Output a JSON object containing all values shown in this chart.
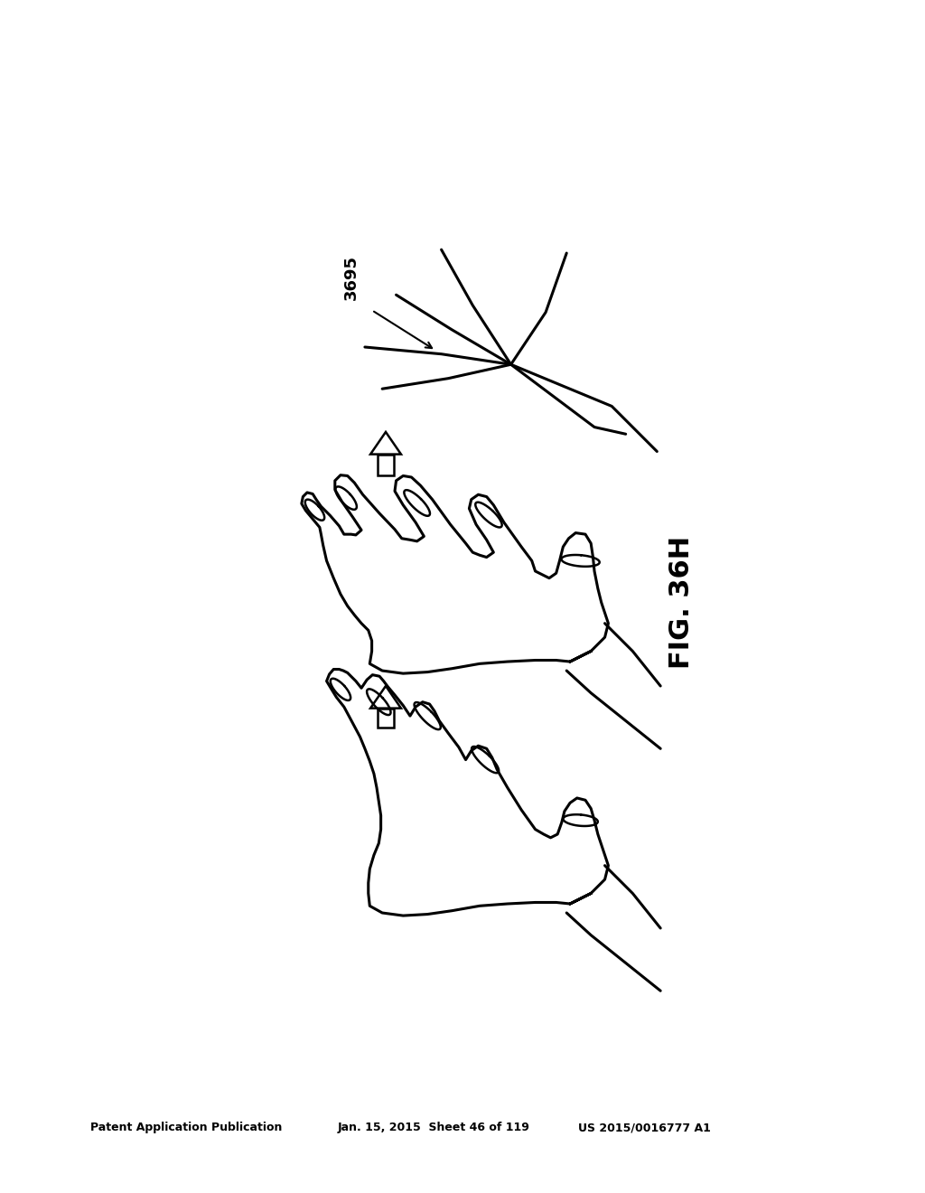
{
  "background_color": "#ffffff",
  "header_text_left": "Patent Application Publication",
  "header_text_mid": "Jan. 15, 2015  Sheet 46 of 119",
  "header_text_right": "US 2015/0016777 A1",
  "label_3695": "3695",
  "fig_label": "FIG. 36H",
  "line_color": "#000000",
  "lw_main": 2.2,
  "lw_thin": 1.8
}
